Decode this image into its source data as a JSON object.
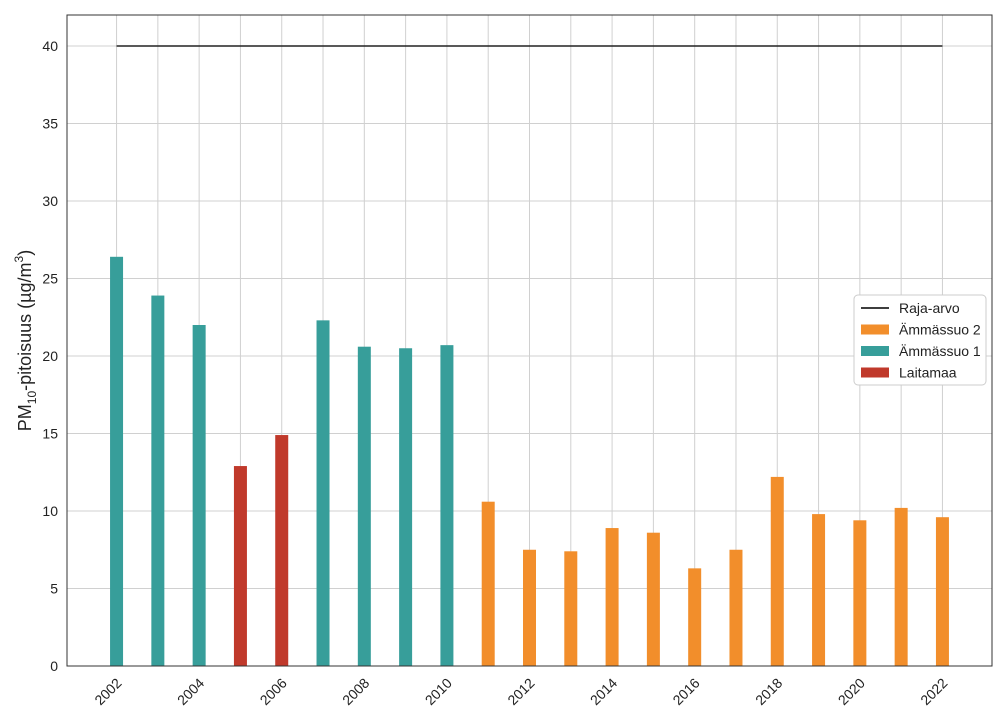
{
  "chart_data": {
    "type": "bar",
    "title": "",
    "xlabel": "",
    "ylabel_main": "PM",
    "ylabel_sub": "10",
    "ylabel_rest": "-pitoisuus (µg/m",
    "ylabel_sup": "3",
    "ylabel_end": ")",
    "ylim": [
      0,
      42
    ],
    "xlim": [
      2000.8,
      2023.2
    ],
    "grid": true,
    "legend_placement": "center-right",
    "yticks": [
      0,
      5,
      10,
      15,
      20,
      25,
      30,
      35,
      40
    ],
    "xticks": [
      2002,
      2004,
      2006,
      2008,
      2010,
      2012,
      2014,
      2016,
      2018,
      2020,
      2022
    ],
    "series": [
      {
        "name": "Ämmässuo 2",
        "color": "#f28e2b",
        "points": [
          [
            2011,
            10.6
          ],
          [
            2012,
            7.5
          ],
          [
            2013,
            7.4
          ],
          [
            2014,
            8.9
          ],
          [
            2015,
            8.6
          ],
          [
            2016,
            6.3
          ],
          [
            2017,
            7.5
          ],
          [
            2018,
            12.2
          ],
          [
            2019,
            9.8
          ],
          [
            2020,
            9.4
          ],
          [
            2021,
            10.2
          ],
          [
            2022,
            9.6
          ]
        ]
      },
      {
        "name": "Ämmässuo 1",
        "color": "#379e9a",
        "points": [
          [
            2002,
            26.4
          ],
          [
            2003,
            23.9
          ],
          [
            2004,
            22.0
          ],
          [
            2007,
            22.3
          ],
          [
            2008,
            20.6
          ],
          [
            2009,
            20.5
          ],
          [
            2010,
            20.7
          ]
        ]
      },
      {
        "name": "Laitamaa",
        "color": "#c0392b",
        "points": [
          [
            2005,
            12.9
          ],
          [
            2006,
            14.9
          ]
        ]
      }
    ],
    "limit_line": {
      "name": "Raja-arvo",
      "value": 40,
      "from": 2002,
      "to": 2022,
      "color": "#222222"
    }
  }
}
